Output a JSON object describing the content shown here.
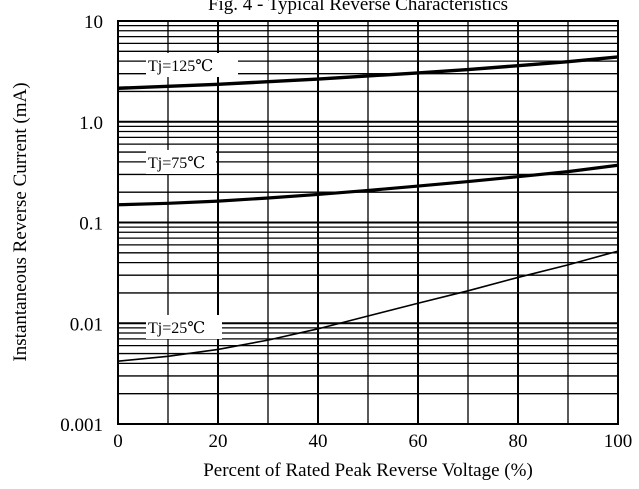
{
  "chart_data": {
    "type": "line",
    "title": "Fig. 4 - Typical Reverse Characteristics",
    "xlabel": "Percent of Rated Peak Reverse Voltage (%)",
    "ylabel": "Instantaneous Reverse Current (mA)",
    "xscale": "linear",
    "yscale": "log",
    "xlim": [
      0,
      100
    ],
    "ylim": [
      0.001,
      10
    ],
    "x_ticks": [
      0,
      20,
      40,
      60,
      80,
      100
    ],
    "x_tick_labels": [
      "0",
      "20",
      "40",
      "60",
      "80",
      "100"
    ],
    "y_ticks": [
      0.001,
      0.01,
      0.1,
      1.0,
      10
    ],
    "y_tick_labels": [
      "0.001",
      "0.01",
      "0.1",
      "1.0",
      "10"
    ],
    "grid": true,
    "legend": "inline labels",
    "line_color": "#000000",
    "series": [
      {
        "name": "Tj=125℃",
        "x": [
          0,
          10,
          20,
          30,
          40,
          50,
          60,
          70,
          80,
          90,
          100
        ],
        "y": [
          2.15,
          2.25,
          2.35,
          2.5,
          2.65,
          2.85,
          3.05,
          3.3,
          3.6,
          3.95,
          4.4
        ]
      },
      {
        "name": "Tj=75℃",
        "x": [
          0,
          10,
          20,
          30,
          40,
          50,
          60,
          70,
          80,
          90,
          100
        ],
        "y": [
          0.15,
          0.155,
          0.163,
          0.175,
          0.19,
          0.208,
          0.23,
          0.255,
          0.285,
          0.32,
          0.37
        ]
      },
      {
        "name": "Tj=25℃",
        "x": [
          0,
          10,
          20,
          30,
          40,
          50,
          60,
          70,
          80,
          90,
          100
        ],
        "y": [
          0.0042,
          0.0047,
          0.0055,
          0.0068,
          0.0088,
          0.0118,
          0.0158,
          0.021,
          0.0285,
          0.038,
          0.052
        ]
      }
    ]
  }
}
